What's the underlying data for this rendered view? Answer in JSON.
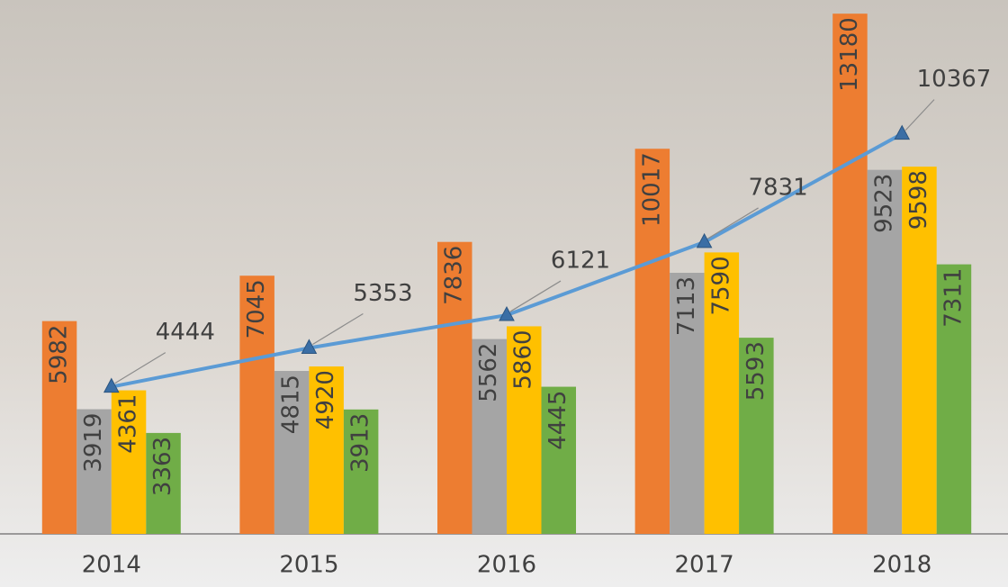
{
  "chart_data": {
    "type": "bar",
    "categories": [
      "2014",
      "2015",
      "2016",
      "2017",
      "2018"
    ],
    "series": [
      {
        "color": "#ED7D31",
        "values": [
          5982,
          7045,
          7836,
          10017,
          13180
        ]
      },
      {
        "color": "#A5A5A5",
        "values": [
          3919,
          4815,
          5562,
          7113,
          9523
        ]
      },
      {
        "color": "#FFC000",
        "values": [
          4361,
          4920,
          5860,
          7590,
          9598
        ]
      },
      {
        "color": "#70AD47",
        "values": [
          3363,
          3913,
          4445,
          5593,
          7311
        ]
      },
      {
        "type": "line",
        "color": "#5B9BD5",
        "values": [
          4444,
          5353,
          6121,
          7831,
          10367
        ]
      }
    ],
    "ylim": [
      1000,
      13500
    ]
  }
}
